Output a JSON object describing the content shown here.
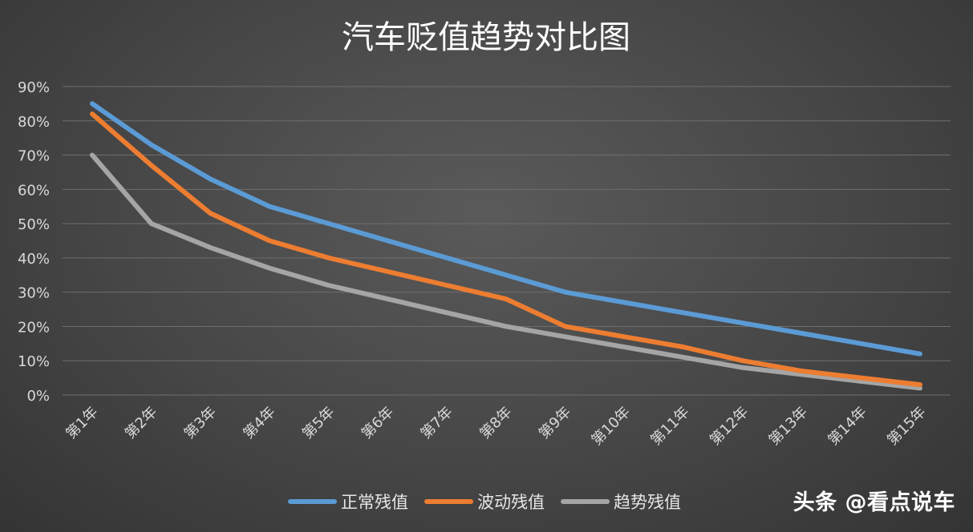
{
  "chart_data": {
    "type": "line",
    "title": "汽车贬值趋势对比图",
    "categories": [
      "第1年",
      "第2年",
      "第3年",
      "第4年",
      "第5年",
      "第6年",
      "第7年",
      "第8年",
      "第9年",
      "第10年",
      "第11年",
      "第12年",
      "第13年",
      "第14年",
      "第15年"
    ],
    "y_ticks": [
      "0%",
      "10%",
      "20%",
      "30%",
      "40%",
      "50%",
      "60%",
      "70%",
      "80%",
      "90%"
    ],
    "ylim": [
      0,
      90
    ],
    "grid": true,
    "legend_position": "bottom",
    "series": [
      {
        "name": "正常残值",
        "color": "#5b9bd5",
        "values": [
          85,
          73,
          63,
          55,
          50,
          45,
          40,
          35,
          30,
          27,
          24,
          21,
          18,
          15,
          12
        ]
      },
      {
        "name": "波动残值",
        "color": "#ed7d31",
        "values": [
          82,
          67,
          53,
          45,
          40,
          36,
          32,
          28,
          20,
          17,
          14,
          10,
          7,
          5,
          3
        ]
      },
      {
        "name": "趋势残值",
        "color": "#a5a5a5",
        "values": [
          70,
          50,
          43,
          37,
          32,
          28,
          24,
          20,
          17,
          14,
          11,
          8,
          6,
          4,
          2
        ]
      }
    ]
  },
  "watermark": "头条 @看点说车"
}
